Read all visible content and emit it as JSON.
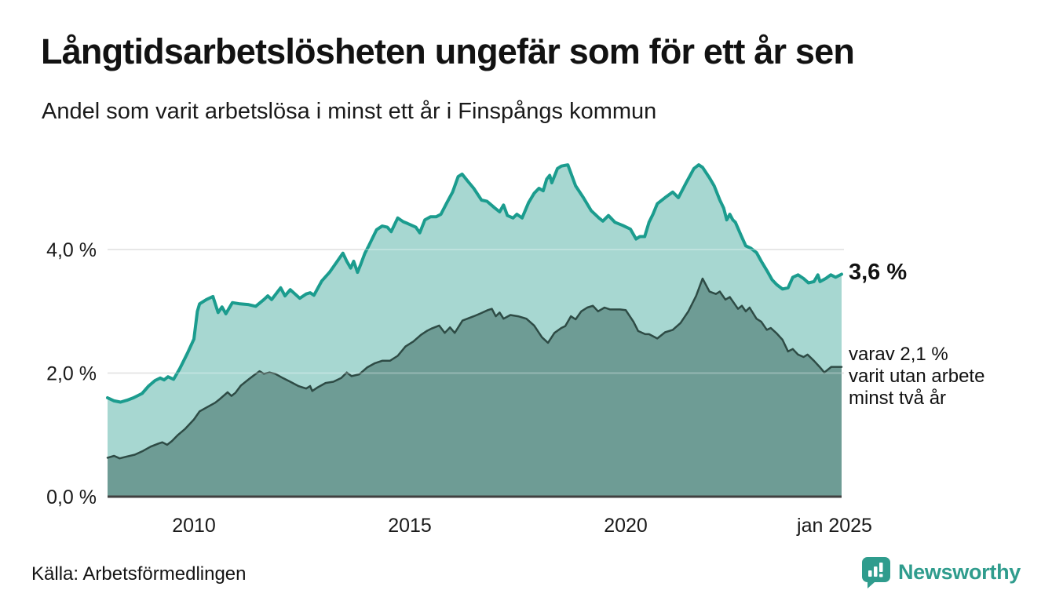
{
  "header": {
    "title": "Långtidsarbetslösheten ungefär som för ett år sen",
    "subtitle": "Andel som varit arbetslösa i minst ett år i Finspångs kommun"
  },
  "footer": {
    "source": "Källa: Arbetsförmedlingen",
    "brand": "Newsworthy"
  },
  "colors": {
    "accent_teal": "#1b9c8e",
    "light_fill": "#a7d7d1",
    "dark_line": "#2e4b45",
    "dark_fill": "#6e9c95",
    "grid": "#dedede",
    "axis": "#404040",
    "text": "#1a1a1a",
    "brand_teal": "#2f9c8d"
  },
  "chart_data": {
    "type": "area",
    "title": "Långtidsarbetslösheten ungefär som för ett år sen",
    "subtitle": "Andel som varit arbetslösa i minst ett år i Finspångs kommun",
    "grid": "horizontal-only",
    "legend_position": "none",
    "xlim": [
      2008.0,
      2025.08
    ],
    "ylim": [
      0,
      5.6
    ],
    "x_ticks": [
      {
        "label": "2010",
        "t": 2010,
        "dx": 0
      },
      {
        "label": "2015",
        "t": 2015,
        "dx": 0
      },
      {
        "label": "2020",
        "t": 2020,
        "dx": 0
      },
      {
        "label": "jan 2025",
        "t": 2025.0,
        "dx": -9
      }
    ],
    "y_ticks": [
      {
        "label": "0,0 %",
        "v": 0.0
      },
      {
        "label": "2,0 %",
        "v": 2.0
      },
      {
        "label": "4,0 %",
        "v": 4.0
      }
    ],
    "annotations": {
      "latest_total": "3,6 %",
      "latest_two_years_line1": "varav 2,1 %",
      "latest_two_years_line2": "varit utan arbete",
      "latest_two_years_line3": "minst två år"
    },
    "series": [
      {
        "name": "arbetslösa minst ett år",
        "end_label": "3,6 %",
        "latest_value": 3.6,
        "line_color": "#1b9c8e",
        "fill_color": "#a7d7d1",
        "line_width": 4,
        "points": [
          [
            2008.0,
            1.6
          ],
          [
            2008.15,
            1.55
          ],
          [
            2008.3,
            1.53
          ],
          [
            2008.45,
            1.56
          ],
          [
            2008.6,
            1.6
          ],
          [
            2008.8,
            1.67
          ],
          [
            2008.95,
            1.79
          ],
          [
            2009.1,
            1.88
          ],
          [
            2009.22,
            1.92
          ],
          [
            2009.31,
            1.89
          ],
          [
            2009.4,
            1.94
          ],
          [
            2009.53,
            1.9
          ],
          [
            2009.67,
            2.07
          ],
          [
            2009.85,
            2.32
          ],
          [
            2010.0,
            2.55
          ],
          [
            2010.08,
            3.0
          ],
          [
            2010.13,
            3.12
          ],
          [
            2010.29,
            3.19
          ],
          [
            2010.44,
            3.24
          ],
          [
            2010.56,
            2.98
          ],
          [
            2010.65,
            3.07
          ],
          [
            2010.74,
            2.96
          ],
          [
            2010.89,
            3.14
          ],
          [
            2011.07,
            3.12
          ],
          [
            2011.25,
            3.11
          ],
          [
            2011.43,
            3.08
          ],
          [
            2011.62,
            3.19
          ],
          [
            2011.71,
            3.25
          ],
          [
            2011.8,
            3.19
          ],
          [
            2012.01,
            3.38
          ],
          [
            2012.11,
            3.25
          ],
          [
            2012.23,
            3.35
          ],
          [
            2012.45,
            3.21
          ],
          [
            2012.6,
            3.28
          ],
          [
            2012.69,
            3.3
          ],
          [
            2012.78,
            3.26
          ],
          [
            2012.96,
            3.49
          ],
          [
            2013.14,
            3.63
          ],
          [
            2013.32,
            3.81
          ],
          [
            2013.45,
            3.94
          ],
          [
            2013.54,
            3.81
          ],
          [
            2013.63,
            3.7
          ],
          [
            2013.7,
            3.81
          ],
          [
            2013.79,
            3.63
          ],
          [
            2013.87,
            3.77
          ],
          [
            2013.96,
            3.94
          ],
          [
            2014.05,
            4.06
          ],
          [
            2014.14,
            4.19
          ],
          [
            2014.23,
            4.32
          ],
          [
            2014.36,
            4.38
          ],
          [
            2014.48,
            4.36
          ],
          [
            2014.57,
            4.29
          ],
          [
            2014.72,
            4.51
          ],
          [
            2014.85,
            4.45
          ],
          [
            2014.95,
            4.42
          ],
          [
            2015.14,
            4.36
          ],
          [
            2015.23,
            4.27
          ],
          [
            2015.35,
            4.48
          ],
          [
            2015.48,
            4.53
          ],
          [
            2015.61,
            4.53
          ],
          [
            2015.72,
            4.57
          ],
          [
            2015.86,
            4.76
          ],
          [
            2015.99,
            4.93
          ],
          [
            2016.12,
            5.18
          ],
          [
            2016.21,
            5.22
          ],
          [
            2016.35,
            5.1
          ],
          [
            2016.48,
            4.99
          ],
          [
            2016.66,
            4.8
          ],
          [
            2016.79,
            4.78
          ],
          [
            2016.97,
            4.67
          ],
          [
            2017.08,
            4.61
          ],
          [
            2017.17,
            4.72
          ],
          [
            2017.26,
            4.55
          ],
          [
            2017.39,
            4.51
          ],
          [
            2017.48,
            4.57
          ],
          [
            2017.6,
            4.51
          ],
          [
            2017.75,
            4.76
          ],
          [
            2017.88,
            4.91
          ],
          [
            2017.99,
            4.99
          ],
          [
            2018.09,
            4.95
          ],
          [
            2018.17,
            5.14
          ],
          [
            2018.24,
            5.2
          ],
          [
            2018.29,
            5.08
          ],
          [
            2018.42,
            5.31
          ],
          [
            2018.51,
            5.35
          ],
          [
            2018.66,
            5.37
          ],
          [
            2018.84,
            5.03
          ],
          [
            2019.02,
            4.84
          ],
          [
            2019.2,
            4.63
          ],
          [
            2019.38,
            4.51
          ],
          [
            2019.47,
            4.46
          ],
          [
            2019.6,
            4.55
          ],
          [
            2019.75,
            4.44
          ],
          [
            2019.93,
            4.39
          ],
          [
            2020.11,
            4.33
          ],
          [
            2020.24,
            4.17
          ],
          [
            2020.33,
            4.21
          ],
          [
            2020.44,
            4.21
          ],
          [
            2020.54,
            4.44
          ],
          [
            2020.63,
            4.57
          ],
          [
            2020.73,
            4.74
          ],
          [
            2020.91,
            4.84
          ],
          [
            2021.09,
            4.93
          ],
          [
            2021.22,
            4.84
          ],
          [
            2021.4,
            5.08
          ],
          [
            2021.58,
            5.31
          ],
          [
            2021.69,
            5.37
          ],
          [
            2021.78,
            5.33
          ],
          [
            2021.94,
            5.16
          ],
          [
            2022.05,
            5.03
          ],
          [
            2022.18,
            4.8
          ],
          [
            2022.27,
            4.67
          ],
          [
            2022.34,
            4.48
          ],
          [
            2022.41,
            4.57
          ],
          [
            2022.48,
            4.48
          ],
          [
            2022.54,
            4.44
          ],
          [
            2022.67,
            4.23
          ],
          [
            2022.78,
            4.06
          ],
          [
            2022.9,
            4.02
          ],
          [
            2023.03,
            3.95
          ],
          [
            2023.14,
            3.81
          ],
          [
            2023.27,
            3.66
          ],
          [
            2023.39,
            3.51
          ],
          [
            2023.5,
            3.43
          ],
          [
            2023.63,
            3.36
          ],
          [
            2023.76,
            3.38
          ],
          [
            2023.87,
            3.55
          ],
          [
            2023.99,
            3.59
          ],
          [
            2024.12,
            3.53
          ],
          [
            2024.23,
            3.46
          ],
          [
            2024.36,
            3.48
          ],
          [
            2024.45,
            3.59
          ],
          [
            2024.5,
            3.48
          ],
          [
            2024.63,
            3.53
          ],
          [
            2024.75,
            3.59
          ],
          [
            2024.86,
            3.55
          ],
          [
            2025.0,
            3.6
          ]
        ]
      },
      {
        "name": "varav utan arbete minst två år",
        "end_label": "varav 2,1 % varit utan arbete minst två år",
        "latest_value": 2.1,
        "line_color": "#2e4b45",
        "fill_color": "#6e9c95",
        "line_width": 2.5,
        "points": [
          [
            2008.0,
            0.63
          ],
          [
            2008.15,
            0.66
          ],
          [
            2008.28,
            0.62
          ],
          [
            2008.45,
            0.65
          ],
          [
            2008.63,
            0.68
          ],
          [
            2008.82,
            0.74
          ],
          [
            2009.0,
            0.81
          ],
          [
            2009.18,
            0.86
          ],
          [
            2009.27,
            0.88
          ],
          [
            2009.38,
            0.84
          ],
          [
            2009.49,
            0.9
          ],
          [
            2009.63,
            1.0
          ],
          [
            2009.8,
            1.1
          ],
          [
            2010.0,
            1.25
          ],
          [
            2010.13,
            1.38
          ],
          [
            2010.31,
            1.45
          ],
          [
            2010.49,
            1.52
          ],
          [
            2010.6,
            1.58
          ],
          [
            2010.78,
            1.69
          ],
          [
            2010.87,
            1.63
          ],
          [
            2010.96,
            1.68
          ],
          [
            2011.09,
            1.8
          ],
          [
            2011.27,
            1.9
          ],
          [
            2011.4,
            1.97
          ],
          [
            2011.52,
            2.03
          ],
          [
            2011.62,
            1.99
          ],
          [
            2011.75,
            2.01
          ],
          [
            2011.88,
            1.99
          ],
          [
            2012.06,
            1.92
          ],
          [
            2012.23,
            1.86
          ],
          [
            2012.42,
            1.79
          ],
          [
            2012.6,
            1.75
          ],
          [
            2012.69,
            1.79
          ],
          [
            2012.74,
            1.71
          ],
          [
            2012.87,
            1.77
          ],
          [
            2013.05,
            1.84
          ],
          [
            2013.23,
            1.86
          ],
          [
            2013.41,
            1.92
          ],
          [
            2013.54,
            2.01
          ],
          [
            2013.65,
            1.95
          ],
          [
            2013.83,
            1.98
          ],
          [
            2014.01,
            2.09
          ],
          [
            2014.19,
            2.16
          ],
          [
            2014.36,
            2.2
          ],
          [
            2014.54,
            2.2
          ],
          [
            2014.72,
            2.28
          ],
          [
            2014.9,
            2.43
          ],
          [
            2015.08,
            2.51
          ],
          [
            2015.26,
            2.62
          ],
          [
            2015.39,
            2.68
          ],
          [
            2015.5,
            2.72
          ],
          [
            2015.68,
            2.77
          ],
          [
            2015.81,
            2.65
          ],
          [
            2015.93,
            2.74
          ],
          [
            2016.04,
            2.65
          ],
          [
            2016.22,
            2.85
          ],
          [
            2016.48,
            2.92
          ],
          [
            2016.62,
            2.96
          ],
          [
            2016.81,
            3.02
          ],
          [
            2016.9,
            3.04
          ],
          [
            2016.99,
            2.92
          ],
          [
            2017.08,
            2.98
          ],
          [
            2017.17,
            2.88
          ],
          [
            2017.33,
            2.94
          ],
          [
            2017.51,
            2.92
          ],
          [
            2017.7,
            2.88
          ],
          [
            2017.88,
            2.77
          ],
          [
            2018.06,
            2.58
          ],
          [
            2018.2,
            2.49
          ],
          [
            2018.35,
            2.65
          ],
          [
            2018.51,
            2.73
          ],
          [
            2018.6,
            2.76
          ],
          [
            2018.73,
            2.92
          ],
          [
            2018.84,
            2.87
          ],
          [
            2018.97,
            3.0
          ],
          [
            2019.11,
            3.06
          ],
          [
            2019.24,
            3.09
          ],
          [
            2019.36,
            3.0
          ],
          [
            2019.51,
            3.06
          ],
          [
            2019.64,
            3.03
          ],
          [
            2019.87,
            3.03
          ],
          [
            2020.0,
            3.02
          ],
          [
            2020.18,
            2.83
          ],
          [
            2020.29,
            2.68
          ],
          [
            2020.45,
            2.63
          ],
          [
            2020.54,
            2.63
          ],
          [
            2020.73,
            2.56
          ],
          [
            2020.91,
            2.66
          ],
          [
            2021.09,
            2.7
          ],
          [
            2021.27,
            2.81
          ],
          [
            2021.45,
            3.0
          ],
          [
            2021.63,
            3.25
          ],
          [
            2021.78,
            3.53
          ],
          [
            2021.94,
            3.32
          ],
          [
            2022.09,
            3.28
          ],
          [
            2022.18,
            3.32
          ],
          [
            2022.31,
            3.19
          ],
          [
            2022.41,
            3.23
          ],
          [
            2022.6,
            3.04
          ],
          [
            2022.69,
            3.09
          ],
          [
            2022.78,
            3.0
          ],
          [
            2022.87,
            3.06
          ],
          [
            2023.03,
            2.88
          ],
          [
            2023.14,
            2.83
          ],
          [
            2023.27,
            2.7
          ],
          [
            2023.36,
            2.73
          ],
          [
            2023.5,
            2.64
          ],
          [
            2023.63,
            2.54
          ],
          [
            2023.76,
            2.35
          ],
          [
            2023.87,
            2.39
          ],
          [
            2023.99,
            2.3
          ],
          [
            2024.12,
            2.26
          ],
          [
            2024.21,
            2.3
          ],
          [
            2024.36,
            2.2
          ],
          [
            2024.49,
            2.1
          ],
          [
            2024.6,
            2.01
          ],
          [
            2024.76,
            2.1
          ],
          [
            2025.0,
            2.1
          ]
        ]
      }
    ]
  }
}
